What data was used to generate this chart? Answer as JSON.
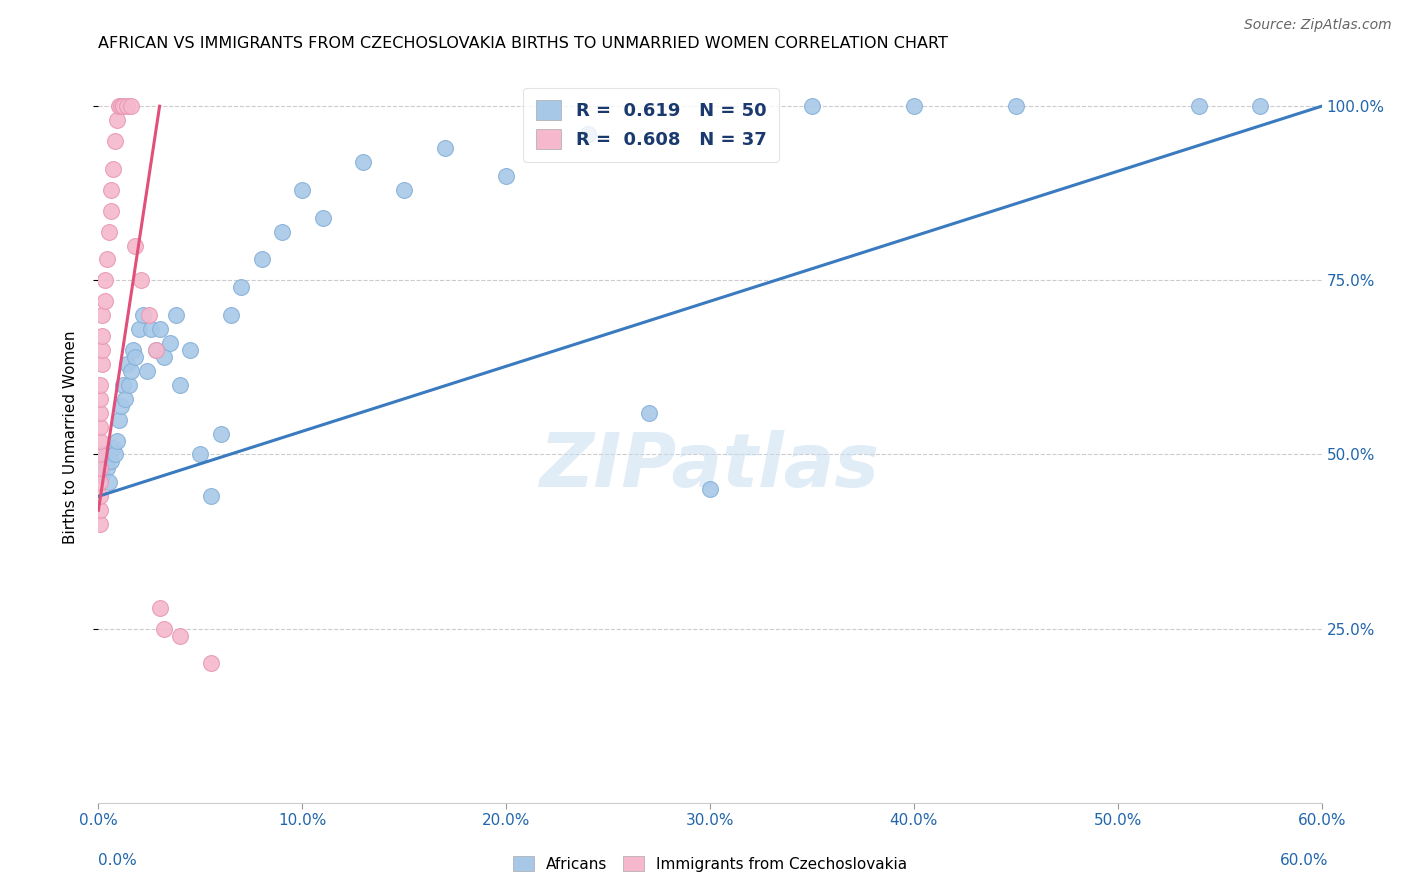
{
  "title": "AFRICAN VS IMMIGRANTS FROM CZECHOSLOVAKIA BIRTHS TO UNMARRIED WOMEN CORRELATION CHART",
  "source": "Source: ZipAtlas.com",
  "ylabel": "Births to Unmarried Women",
  "xlim": [
    0.0,
    0.6
  ],
  "ylim": [
    0.0,
    1.05
  ],
  "xtick_values": [
    0.0,
    0.1,
    0.2,
    0.3,
    0.4,
    0.5,
    0.6
  ],
  "xtick_labels": [
    "0.0%",
    "10.0%",
    "20.0%",
    "30.0%",
    "40.0%",
    "50.0%",
    "60.0%"
  ],
  "ytick_values": [
    0.25,
    0.5,
    0.75,
    1.0
  ],
  "ytick_labels": [
    "25.0%",
    "50.0%",
    "75.0%",
    "100.0%"
  ],
  "blue_color": "#a8c8e8",
  "blue_edge_color": "#85b0d8",
  "blue_line_color": "#3a7abf",
  "pink_color": "#f5b8cc",
  "pink_edge_color": "#e898b4",
  "pink_line_color": "#e0507a",
  "watermark": "ZIPatlas",
  "blue_line_x": [
    0.0,
    0.6
  ],
  "blue_line_y": [
    0.44,
    1.0
  ],
  "pink_line_x": [
    0.0,
    0.03
  ],
  "pink_line_y": [
    0.42,
    1.0
  ],
  "africans_x": [
    0.002,
    0.002,
    0.003,
    0.004,
    0.005,
    0.006,
    0.007,
    0.008,
    0.009,
    0.01,
    0.011,
    0.012,
    0.013,
    0.014,
    0.015,
    0.016,
    0.017,
    0.018,
    0.02,
    0.022,
    0.024,
    0.026,
    0.028,
    0.03,
    0.032,
    0.035,
    0.038,
    0.04,
    0.045,
    0.05,
    0.055,
    0.06,
    0.065,
    0.07,
    0.08,
    0.09,
    0.1,
    0.11,
    0.13,
    0.15,
    0.17,
    0.2,
    0.24,
    0.27,
    0.3,
    0.35,
    0.4,
    0.45,
    0.54,
    0.57
  ],
  "africans_y": [
    0.47,
    0.48,
    0.5,
    0.48,
    0.46,
    0.49,
    0.51,
    0.5,
    0.52,
    0.55,
    0.57,
    0.6,
    0.58,
    0.63,
    0.6,
    0.62,
    0.65,
    0.64,
    0.68,
    0.7,
    0.62,
    0.68,
    0.65,
    0.68,
    0.64,
    0.66,
    0.7,
    0.6,
    0.65,
    0.5,
    0.44,
    0.53,
    0.7,
    0.74,
    0.78,
    0.82,
    0.88,
    0.84,
    0.92,
    0.88,
    0.94,
    0.9,
    0.96,
    0.56,
    0.45,
    1.0,
    1.0,
    1.0,
    1.0,
    1.0
  ],
  "czech_x": [
    0.001,
    0.001,
    0.001,
    0.001,
    0.001,
    0.001,
    0.001,
    0.001,
    0.001,
    0.001,
    0.001,
    0.002,
    0.002,
    0.002,
    0.002,
    0.003,
    0.003,
    0.004,
    0.005,
    0.006,
    0.006,
    0.007,
    0.008,
    0.009,
    0.01,
    0.011,
    0.012,
    0.014,
    0.016,
    0.018,
    0.021,
    0.025,
    0.028,
    0.03,
    0.032,
    0.04,
    0.055
  ],
  "czech_y": [
    0.4,
    0.42,
    0.44,
    0.46,
    0.48,
    0.5,
    0.52,
    0.54,
    0.56,
    0.58,
    0.6,
    0.63,
    0.65,
    0.67,
    0.7,
    0.72,
    0.75,
    0.78,
    0.82,
    0.85,
    0.88,
    0.91,
    0.95,
    0.98,
    1.0,
    1.0,
    1.0,
    1.0,
    1.0,
    0.8,
    0.75,
    0.7,
    0.65,
    0.28,
    0.25,
    0.24,
    0.2
  ]
}
